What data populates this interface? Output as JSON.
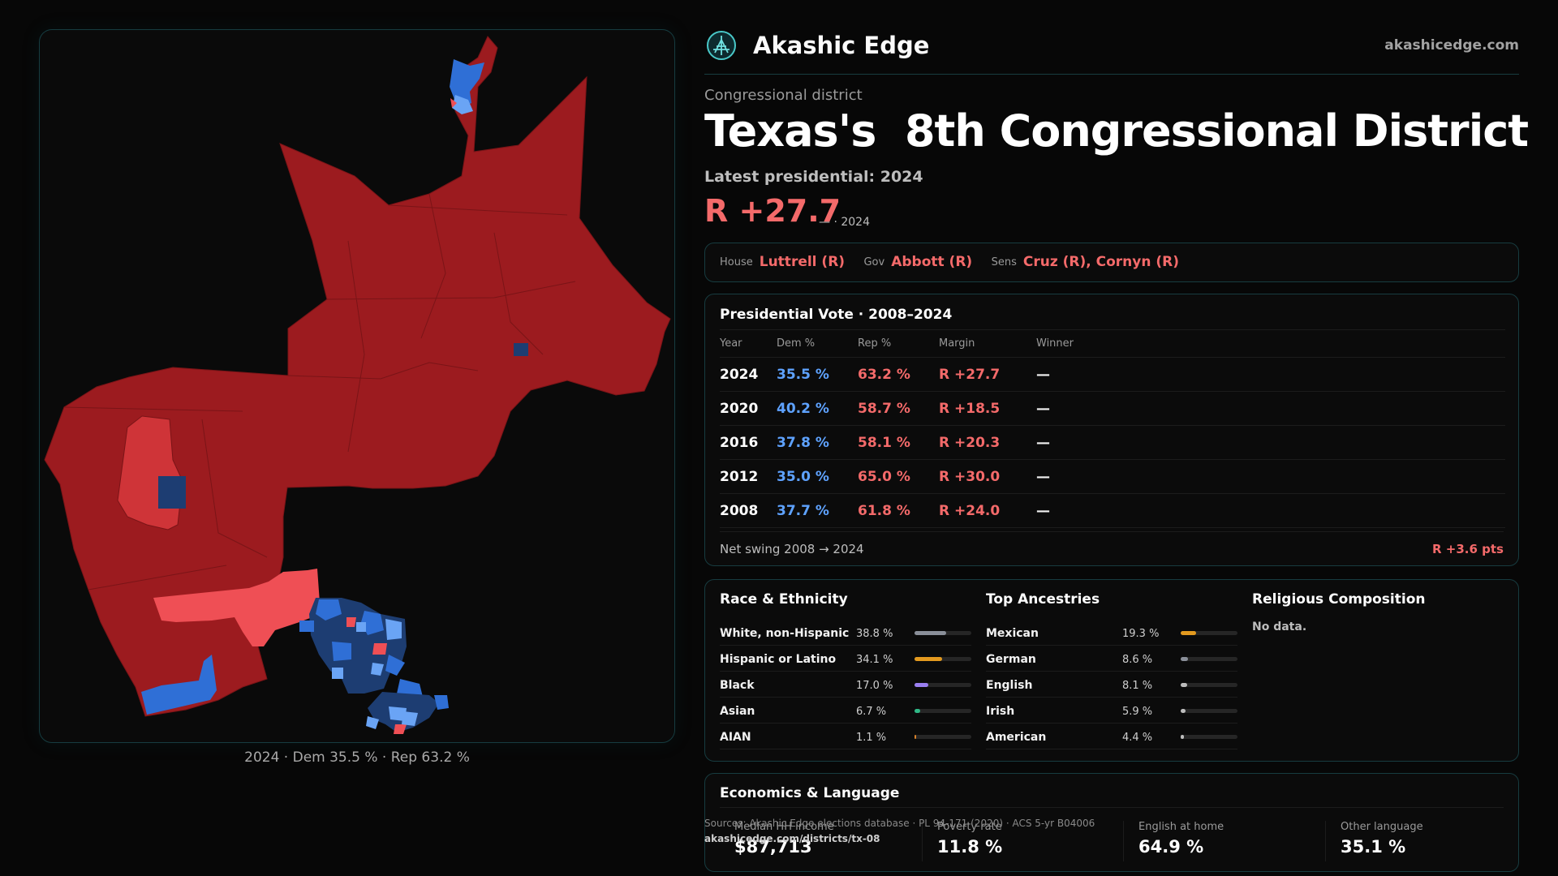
{
  "header": {
    "brand": "Akashic Edge",
    "domain": "akashicedge.com"
  },
  "district": {
    "kicker": "Congressional district",
    "title": "Texas's  8th Congressional District",
    "latest_label": "Latest presidential: 2024",
    "margin": "R +27.7",
    "margin_suffix": "— · 2024"
  },
  "officials": {
    "house_label": "House",
    "house": "Luttrell (R)",
    "gov_label": "Gov",
    "gov": "Abbott (R)",
    "sens_label": "Sens",
    "sens": "Cruz (R), Cornyn (R)"
  },
  "presidential": {
    "title": "Presidential Vote · 2008–2024",
    "columns": [
      "Year",
      "Dem %",
      "Rep %",
      "Margin",
      "Winner"
    ],
    "rows": [
      {
        "year": "2024",
        "dem": "35.5 %",
        "rep": "63.2 %",
        "margin": "R +27.7",
        "winner": "—"
      },
      {
        "year": "2020",
        "dem": "40.2 %",
        "rep": "58.7 %",
        "margin": "R +18.5",
        "winner": "—"
      },
      {
        "year": "2016",
        "dem": "37.8 %",
        "rep": "58.1 %",
        "margin": "R +20.3",
        "winner": "—"
      },
      {
        "year": "2012",
        "dem": "35.0 %",
        "rep": "65.0 %",
        "margin": "R +30.0",
        "winner": "—"
      },
      {
        "year": "2008",
        "dem": "37.7 %",
        "rep": "61.8 %",
        "margin": "R +24.0",
        "winner": "—"
      }
    ],
    "swing_label": "Net swing 2008 → 2024",
    "swing_value": "R +3.6 pts"
  },
  "race": {
    "title": "Race & Ethnicity",
    "items": [
      {
        "name": "White, non-Hispanic",
        "pct": "38.8 %",
        "value": 38.8,
        "color": "#8a8f99"
      },
      {
        "name": "Hispanic or Latino",
        "pct": "34.1 %",
        "value": 34.1,
        "color": "#e39a1f"
      },
      {
        "name": "Black",
        "pct": "17.0 %",
        "value": 17.0,
        "color": "#9a7ff0"
      },
      {
        "name": "Asian",
        "pct": "6.7 %",
        "value": 6.7,
        "color": "#2fb886"
      },
      {
        "name": "AIAN",
        "pct": "1.1 %",
        "value": 1.1,
        "color": "#d9822b"
      }
    ]
  },
  "ancestry": {
    "title": "Top Ancestries",
    "items": [
      {
        "name": "Mexican",
        "pct": "19.3 %",
        "value": 19.3,
        "color": "#e39a1f"
      },
      {
        "name": "German",
        "pct": "8.6 %",
        "value": 8.6,
        "color": "#8a8f99"
      },
      {
        "name": "English",
        "pct": "8.1 %",
        "value": 8.1,
        "color": "#bdbdbd"
      },
      {
        "name": "Irish",
        "pct": "5.9 %",
        "value": 5.9,
        "color": "#bdbdbd"
      },
      {
        "name": "American",
        "pct": "4.4 %",
        "value": 4.4,
        "color": "#bdbdbd"
      }
    ]
  },
  "religion": {
    "title": "Religious Composition",
    "empty": "No data."
  },
  "economics": {
    "title": "Economics & Language",
    "stats": [
      {
        "label": "Median HH income",
        "value": "$87,713"
      },
      {
        "label": "Poverty rate",
        "value": "11.8 %"
      },
      {
        "label": "English at home",
        "value": "64.9 %"
      },
      {
        "label": "Other language",
        "value": "35.1 %"
      }
    ]
  },
  "sources": {
    "text": "Sources: Akashic Edge elections database · PL 94-171 (2020) · ACS 5-yr B04006",
    "url": "akashicedge.com/districts/tx-08"
  },
  "map": {
    "caption": "2024 · Dem 35.5 % · Rep 63.2 %",
    "colors": {
      "safe_rep": "#9c1b1f",
      "lean_rep": "#cf3438",
      "tilt_rep": "#ef4f55",
      "dem": "#2f6fd6",
      "light_dem": "#6aa4f5",
      "dark_dem": "#1d3d72"
    }
  }
}
